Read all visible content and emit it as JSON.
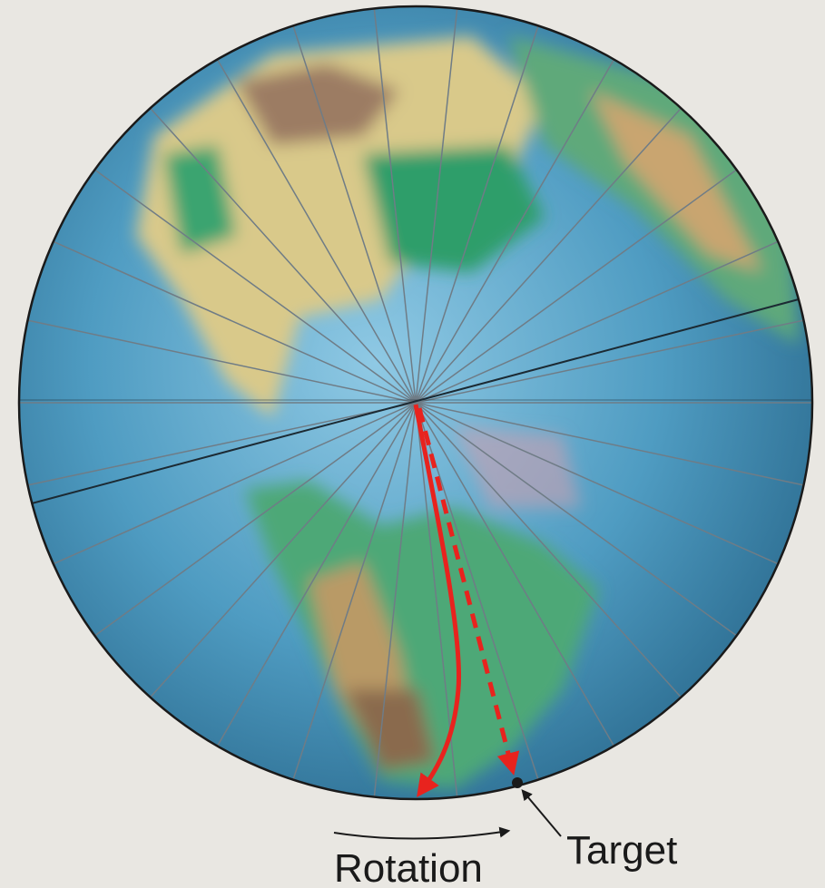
{
  "labels": {
    "rotation": "Rotation",
    "target": "Target"
  }
}
